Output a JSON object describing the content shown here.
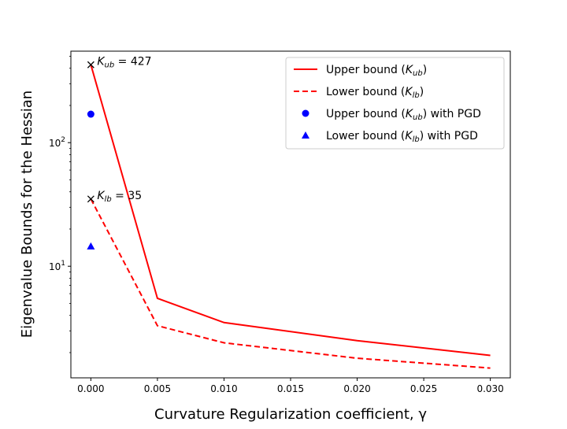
{
  "chart_data": {
    "type": "line",
    "title": "",
    "xlabel": "Curvature Regularization coefficient, γ",
    "ylabel": "Eigenvalue Bounds for the Hessian",
    "xlim": [
      -0.0015,
      0.0315
    ],
    "ylim": [
      1.25,
      550
    ],
    "yscale": "log",
    "x_ticks": [
      0.0,
      0.005,
      0.01,
      0.015,
      0.02,
      0.025,
      0.03
    ],
    "x_tick_labels": [
      "0.000",
      "0.005",
      "0.010",
      "0.015",
      "0.020",
      "0.025",
      "0.030"
    ],
    "y_ticks": [
      {
        "value": 10,
        "base": "10",
        "exp": "1"
      },
      {
        "value": 100,
        "base": "10",
        "exp": "2"
      }
    ],
    "grid": false,
    "legend_position": "top-right",
    "series": [
      {
        "name": "Upper bound (K_ub)",
        "legend_main": "Upper bound (",
        "legend_italic": "K",
        "legend_sub": "ub",
        "legend_tail": ")",
        "style": "solid-line",
        "color": "#ff0000",
        "x": [
          0.0,
          0.005,
          0.01,
          0.02,
          0.03
        ],
        "y": [
          427,
          5.5,
          3.5,
          2.5,
          1.9
        ]
      },
      {
        "name": "Lower bound (K_lb)",
        "legend_main": "Lower bound (",
        "legend_italic": "K",
        "legend_sub": "lb",
        "legend_tail": ")",
        "style": "dashed-line",
        "color": "#ff0000",
        "x": [
          0.0,
          0.005,
          0.01,
          0.02,
          0.03
        ],
        "y": [
          35,
          3.3,
          2.4,
          1.8,
          1.5
        ]
      },
      {
        "name": "Upper bound (K_ub) with PGD",
        "legend_main": "Upper bound (",
        "legend_italic": "K",
        "legend_sub": "ub",
        "legend_tail": ") with PGD",
        "style": "circle-marker",
        "color": "#0000ff",
        "x": [
          0.0
        ],
        "y": [
          170
        ]
      },
      {
        "name": "Lower bound (K_lb) with PGD",
        "legend_main": "Lower bound (",
        "legend_italic": "K",
        "legend_sub": "lb",
        "legend_tail": ") with PGD",
        "style": "triangle-marker",
        "color": "#0000ff",
        "x": [
          0.0
        ],
        "y": [
          14.5
        ]
      }
    ],
    "annotations": [
      {
        "x": 0.0,
        "y": 427,
        "marker": "x",
        "italic": "K",
        "sub": "ub",
        "text": " =  427"
      },
      {
        "x": 0.0,
        "y": 35,
        "marker": "x",
        "italic": "K",
        "sub": "lb",
        "text": " = 35"
      }
    ]
  }
}
